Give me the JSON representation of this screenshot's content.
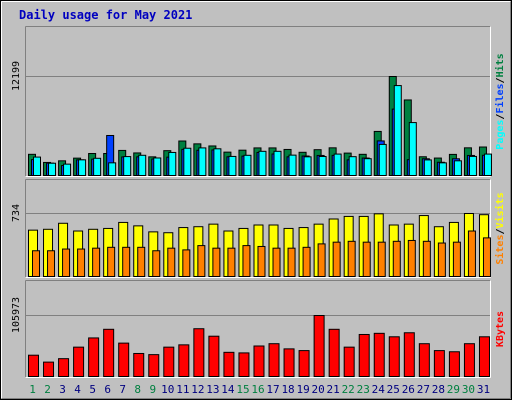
{
  "title": "Daily usage for May 2021",
  "colors": {
    "background": "#c0c0c0",
    "title": "#0000c0",
    "pages": "#00ffff",
    "files": "#0040ff",
    "hits": "#008040",
    "visits": "#ffff00",
    "sites": "#ff8000",
    "kbytes": "#ff0000",
    "weekday_label": "#008040",
    "day_label": "#000080"
  },
  "chart_data": [
    {
      "type": "bar",
      "name": "hits-files-pages",
      "categories": [
        "1",
        "2",
        "3",
        "4",
        "5",
        "6",
        "7",
        "8",
        "9",
        "10",
        "11",
        "12",
        "13",
        "14",
        "15",
        "16",
        "17",
        "18",
        "19",
        "20",
        "21",
        "22",
        "23",
        "24",
        "25",
        "26",
        "27",
        "28",
        "29",
        "30",
        "31"
      ],
      "ymax_label": "12199",
      "ylim": [
        0,
        12199
      ],
      "legend": [
        "Pages",
        "/",
        "Files",
        "/",
        "Hits"
      ],
      "series": [
        {
          "name": "Hits",
          "values": [
            2610,
            1610,
            1810,
            2140,
            2710,
            2710,
            3090,
            2780,
            2300,
            3060,
            4250,
            3900,
            3640,
            2880,
            3120,
            3400,
            3400,
            3210,
            2860,
            3180,
            3410,
            2760,
            2610,
            5430,
            12199,
            9310,
            2310,
            2150,
            2600,
            3410,
            3510
          ]
        },
        {
          "name": "Files",
          "values": [
            1960,
            1520,
            1230,
            1930,
            2010,
            4930,
            2290,
            2300,
            2030,
            2260,
            3220,
            3110,
            3150,
            2300,
            2390,
            2840,
            2650,
            2300,
            2400,
            2470,
            2480,
            1930,
            2150,
            4260,
            8180,
            1950,
            2060,
            1630,
            2060,
            2470,
            2490
          ]
        },
        {
          "name": "Pages",
          "values": [
            2270,
            1510,
            1400,
            1930,
            2120,
            1560,
            2330,
            2490,
            2160,
            2840,
            3360,
            3400,
            3290,
            2350,
            2490,
            2980,
            2980,
            2510,
            2300,
            2340,
            2640,
            2320,
            2070,
            3830,
            11080,
            6520,
            1920,
            1560,
            1810,
            2350,
            2640
          ]
        }
      ]
    },
    {
      "type": "bar",
      "name": "visits-sites",
      "categories": [
        "1",
        "2",
        "3",
        "4",
        "5",
        "6",
        "7",
        "8",
        "9",
        "10",
        "11",
        "12",
        "13",
        "14",
        "15",
        "16",
        "17",
        "18",
        "19",
        "20",
        "21",
        "22",
        "23",
        "24",
        "25",
        "26",
        "27",
        "28",
        "29",
        "30",
        "31"
      ],
      "ymax_label": "734",
      "ylim": [
        0,
        734
      ],
      "legend": [
        "Sites",
        "/",
        "Visits"
      ],
      "series": [
        {
          "name": "Visits",
          "values": [
            540,
            550,
            620,
            530,
            550,
            560,
            630,
            590,
            520,
            510,
            570,
            580,
            610,
            530,
            560,
            600,
            600,
            560,
            570,
            610,
            670,
            700,
            700,
            730,
            600,
            610,
            710,
            580,
            630,
            734,
            720
          ]
        },
        {
          "name": "Sites",
          "values": [
            300,
            300,
            320,
            320,
            330,
            340,
            340,
            340,
            300,
            330,
            310,
            360,
            330,
            330,
            360,
            350,
            330,
            330,
            340,
            380,
            400,
            410,
            400,
            400,
            410,
            420,
            410,
            390,
            400,
            530,
            450
          ]
        }
      ]
    },
    {
      "type": "bar",
      "name": "kbytes",
      "categories": [
        "1",
        "2",
        "3",
        "4",
        "5",
        "6",
        "7",
        "8",
        "9",
        "10",
        "11",
        "12",
        "13",
        "14",
        "15",
        "16",
        "17",
        "18",
        "19",
        "20",
        "21",
        "22",
        "23",
        "24",
        "25",
        "26",
        "27",
        "28",
        "29",
        "30",
        "31"
      ],
      "ymax_label": "105973",
      "ylim": [
        0,
        105973
      ],
      "legend": [
        "KBytes"
      ],
      "series": [
        {
          "name": "KBytes",
          "values": [
            37000,
            25000,
            31000,
            51000,
            67000,
            82000,
            58000,
            40000,
            38000,
            51000,
            55000,
            83000,
            70000,
            42000,
            41000,
            53000,
            57000,
            48000,
            45000,
            105973,
            82000,
            51000,
            73000,
            75000,
            69000,
            76000,
            57000,
            45000,
            43000,
            57000,
            69000
          ]
        }
      ]
    }
  ]
}
